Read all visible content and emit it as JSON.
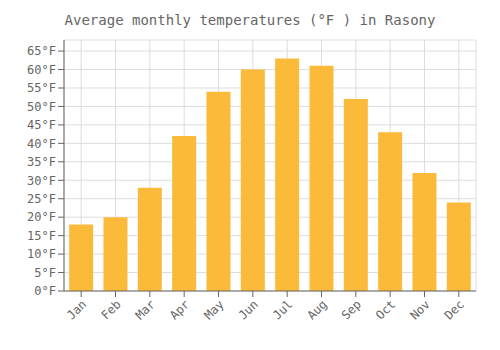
{
  "chart_data": {
    "type": "bar",
    "title": "Average monthly temperatures (°F ) in Rasony",
    "categories": [
      "Jan",
      "Feb",
      "Mar",
      "Apr",
      "May",
      "Jun",
      "Jul",
      "Aug",
      "Sep",
      "Oct",
      "Nov",
      "Dec"
    ],
    "values": [
      18,
      20,
      28,
      42,
      54,
      60,
      63,
      61,
      52,
      43,
      32,
      24
    ],
    "color": "#FBBA3A",
    "ylim": [
      0,
      68
    ],
    "yticks": [
      {
        "value": 0,
        "label": "0°F"
      },
      {
        "value": 5,
        "label": "5°F"
      },
      {
        "value": 10,
        "label": "10°F"
      },
      {
        "value": 15,
        "label": "15°F"
      },
      {
        "value": 20,
        "label": "20°F"
      },
      {
        "value": 25,
        "label": "25°F"
      },
      {
        "value": 30,
        "label": "30°F"
      },
      {
        "value": 35,
        "label": "35°F"
      },
      {
        "value": 40,
        "label": "40°F"
      },
      {
        "value": 45,
        "label": "45°F"
      },
      {
        "value": 50,
        "label": "50°F"
      },
      {
        "value": 55,
        "label": "55°F"
      },
      {
        "value": 60,
        "label": "60°F"
      },
      {
        "value": 65,
        "label": "65°F"
      }
    ],
    "grid": true
  }
}
